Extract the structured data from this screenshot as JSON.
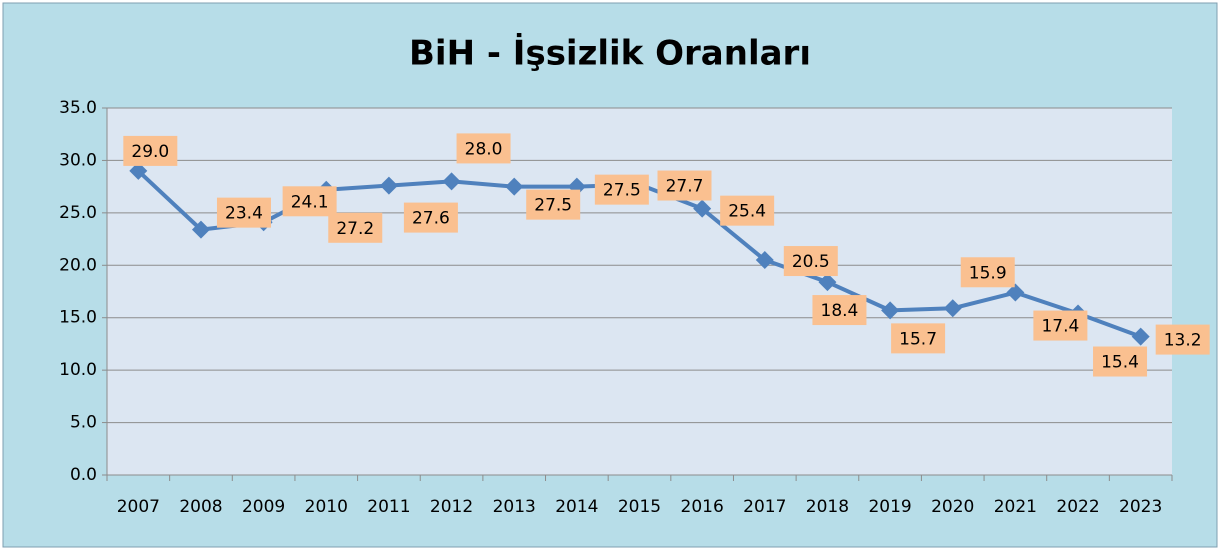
{
  "chart_data": {
    "type": "line",
    "title": "BiH - İşsizlik Oranları",
    "categories": [
      "2007",
      "2008",
      "2009",
      "2010",
      "2011",
      "2012",
      "2013",
      "2014",
      "2015",
      "2016",
      "2017",
      "2018",
      "2019",
      "2020",
      "2021",
      "2022",
      "2023"
    ],
    "series": [
      {
        "name": "BiH",
        "color": "#4f81bd",
        "values": [
          29.0,
          23.4,
          24.1,
          27.2,
          27.6,
          28.0,
          27.5,
          27.5,
          27.7,
          25.4,
          20.5,
          18.4,
          15.7,
          15.9,
          17.4,
          15.4,
          13.2
        ],
        "value_labels": [
          "29.0",
          "23.4",
          "24.1",
          "27.2",
          "27.6",
          "28.0",
          "27.5",
          "27.5",
          "27.7",
          "25.4",
          "20.5",
          "18.4",
          "15.7",
          "15.9",
          "17.4",
          "15.4",
          "13.2"
        ]
      }
    ],
    "ylim": [
      0,
      35
    ],
    "yticks": [
      {
        "value": 0,
        "label": "0.0"
      },
      {
        "value": 5,
        "label": "5.0"
      },
      {
        "value": 10,
        "label": "10.0"
      },
      {
        "value": 15,
        "label": "15.0"
      },
      {
        "value": 20,
        "label": "20.0"
      },
      {
        "value": 25,
        "label": "25.0"
      },
      {
        "value": 30,
        "label": "30.0"
      },
      {
        "value": 35,
        "label": "35.0"
      }
    ],
    "grid": true,
    "label_color": "#fac090"
  }
}
